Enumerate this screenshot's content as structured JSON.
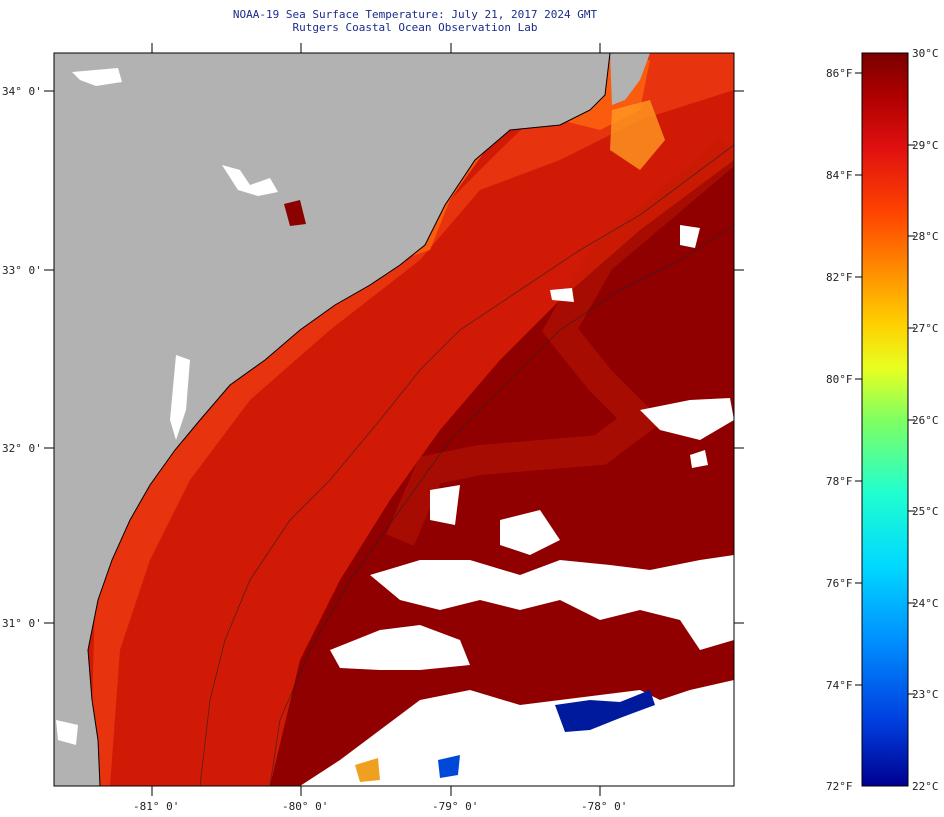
{
  "header": {
    "title": "NOAA-19 Sea Surface Temperature:  July 21, 2017 2024 GMT",
    "subtitle": "Rutgers Coastal Ocean Observation Lab"
  },
  "map": {
    "lat_labels": [
      "34° 0'",
      "33° 0'",
      "32° 0'",
      "31° 0'"
    ],
    "lon_labels": [
      "-81° 0'",
      "-80° 0'",
      "-79° 0'",
      "-78° 0'"
    ]
  },
  "colorbar": {
    "f_labels": [
      "86°F",
      "84°F",
      "82°F",
      "80°F",
      "78°F",
      "76°F",
      "74°F",
      "72°F"
    ],
    "c_labels": [
      "30°C",
      "29°C",
      "28°C",
      "27°C",
      "26°C",
      "25°C",
      "24°C",
      "23°C",
      "22°C"
    ],
    "colors": [
      "#7a0000",
      "#b00000",
      "#e01010",
      "#ff4500",
      "#ff9000",
      "#ffd000",
      "#e8ff20",
      "#80ff60",
      "#20ffd0",
      "#00d8ff",
      "#0090ff",
      "#0040e0",
      "#000090"
    ]
  },
  "colors": {
    "land": "#b2b2b2",
    "cloud": "#ffffff",
    "warm_water": "#d81e05",
    "hot_water": "#8b0000",
    "title": "#1a2b8c"
  }
}
